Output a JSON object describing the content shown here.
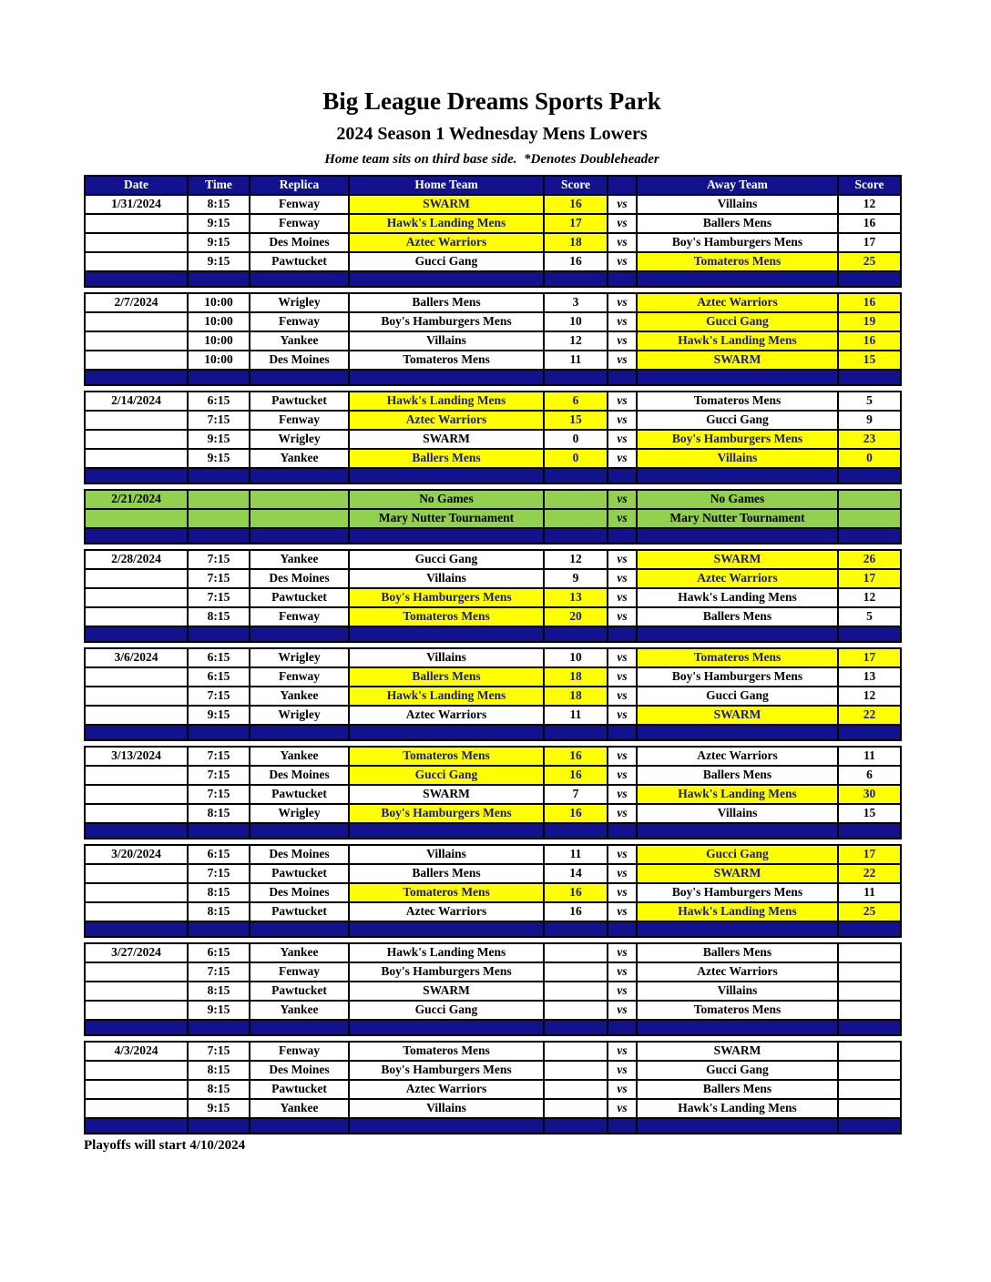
{
  "page": {
    "title": "Big League Dreams Sports Park",
    "subtitle": "2024 Season 1 Wednesday Mens Lowers",
    "note": "Home team sits on third base side.  *Denotes Doubleheader",
    "footer": "Playoffs will start 4/10/2024"
  },
  "colors": {
    "navy": "#12128F",
    "highlight_yellow": "#FFFF00",
    "highlight_text": "#1b1b80",
    "special_green": "#92D050",
    "header_text": "#ffffff"
  },
  "table": {
    "vs_label": "vs",
    "headers": [
      "Date",
      "Time",
      "Replica",
      "Home Team",
      "Score",
      "",
      "Away Team",
      "Score"
    ],
    "groups": [
      {
        "date": "1/31/2024",
        "type": "games",
        "rows": [
          {
            "time": "8:15",
            "replica": "Fenway",
            "home": "SWARM",
            "home_score": "16",
            "away": "Villains",
            "away_score": "12",
            "highlight": "home"
          },
          {
            "time": "9:15",
            "replica": "Fenway",
            "home": "Hawk's Landing Mens",
            "home_score": "17",
            "away": "Ballers Mens",
            "away_score": "16",
            "highlight": "home"
          },
          {
            "time": "9:15",
            "replica": "Des Moines",
            "home": "Aztec Warriors",
            "home_score": "18",
            "away": "Boy's Hamburgers Mens",
            "away_score": "17",
            "highlight": "home"
          },
          {
            "time": "9:15",
            "replica": "Pawtucket",
            "home": "Gucci Gang",
            "home_score": "16",
            "away": "Tomateros Mens",
            "away_score": "25",
            "highlight": "away"
          }
        ]
      },
      {
        "date": "2/7/2024",
        "type": "games",
        "rows": [
          {
            "time": "10:00",
            "replica": "Wrigley",
            "home": "Ballers Mens",
            "home_score": "3",
            "away": "Aztec Warriors",
            "away_score": "16",
            "highlight": "away"
          },
          {
            "time": "10:00",
            "replica": "Fenway",
            "home": "Boy's Hamburgers Mens",
            "home_score": "10",
            "away": "Gucci Gang",
            "away_score": "19",
            "highlight": "away"
          },
          {
            "time": "10:00",
            "replica": "Yankee",
            "home": "Villains",
            "home_score": "12",
            "away": "Hawk's Landing Mens",
            "away_score": "16",
            "highlight": "away"
          },
          {
            "time": "10:00",
            "replica": "Des Moines",
            "home": "Tomateros Mens",
            "home_score": "11",
            "away": "SWARM",
            "away_score": "15",
            "highlight": "away"
          }
        ]
      },
      {
        "date": "2/14/2024",
        "type": "games",
        "rows": [
          {
            "time": "6:15",
            "replica": "Pawtucket",
            "home": "Hawk's Landing Mens",
            "home_score": "6",
            "away": "Tomateros Mens",
            "away_score": "5",
            "highlight": "home"
          },
          {
            "time": "7:15",
            "replica": "Fenway",
            "home": "Aztec Warriors",
            "home_score": "15",
            "away": "Gucci Gang",
            "away_score": "9",
            "highlight": "home"
          },
          {
            "time": "9:15",
            "replica": "Wrigley",
            "home": "SWARM",
            "home_score": "0",
            "away": "Boy's Hamburgers Mens",
            "away_score": "23",
            "highlight": "away"
          },
          {
            "time": "9:15",
            "replica": "Yankee",
            "home": "Ballers Mens",
            "home_score": "0",
            "away": "Villains",
            "away_score": "0",
            "highlight": "both"
          }
        ]
      },
      {
        "date": "2/21/2024",
        "type": "special",
        "rows": [
          {
            "time": "",
            "replica": "",
            "home": "No Games",
            "home_score": "",
            "away": "No Games",
            "away_score": "",
            "highlight": "none"
          },
          {
            "time": "",
            "replica": "",
            "home": "Mary Nutter Tournament",
            "home_score": "",
            "away": "Mary Nutter Tournament",
            "away_score": "",
            "highlight": "none"
          }
        ]
      },
      {
        "date": "2/28/2024",
        "type": "games",
        "rows": [
          {
            "time": "7:15",
            "replica": "Yankee",
            "home": "Gucci Gang",
            "home_score": "12",
            "away": "SWARM",
            "away_score": "26",
            "highlight": "away"
          },
          {
            "time": "7:15",
            "replica": "Des Moines",
            "home": "Villains",
            "home_score": "9",
            "away": "Aztec Warriors",
            "away_score": "17",
            "highlight": "away"
          },
          {
            "time": "7:15",
            "replica": "Pawtucket",
            "home": "Boy's Hamburgers Mens",
            "home_score": "13",
            "away": "Hawk's Landing Mens",
            "away_score": "12",
            "highlight": "home"
          },
          {
            "time": "8:15",
            "replica": "Fenway",
            "home": "Tomateros Mens",
            "home_score": "20",
            "away": "Ballers Mens",
            "away_score": "5",
            "highlight": "home"
          }
        ]
      },
      {
        "date": "3/6/2024",
        "type": "games",
        "rows": [
          {
            "time": "6:15",
            "replica": "Wrigley",
            "home": "Villains",
            "home_score": "10",
            "away": "Tomateros Mens",
            "away_score": "17",
            "highlight": "away"
          },
          {
            "time": "6:15",
            "replica": "Fenway",
            "home": "Ballers Mens",
            "home_score": "18",
            "away": "Boy's Hamburgers Mens",
            "away_score": "13",
            "highlight": "home"
          },
          {
            "time": "7:15",
            "replica": "Yankee",
            "home": "Hawk's Landing Mens",
            "home_score": "18",
            "away": "Gucci Gang",
            "away_score": "12",
            "highlight": "home"
          },
          {
            "time": "9:15",
            "replica": "Wrigley",
            "home": "Aztec Warriors",
            "home_score": "11",
            "away": "SWARM",
            "away_score": "22",
            "highlight": "away"
          }
        ]
      },
      {
        "date": "3/13/2024",
        "type": "games",
        "rows": [
          {
            "time": "7:15",
            "replica": "Yankee",
            "home": "Tomateros Mens",
            "home_score": "16",
            "away": "Aztec Warriors",
            "away_score": "11",
            "highlight": "home"
          },
          {
            "time": "7:15",
            "replica": "Des Moines",
            "home": "Gucci Gang",
            "home_score": "16",
            "away": "Ballers Mens",
            "away_score": "6",
            "highlight": "home"
          },
          {
            "time": "7:15",
            "replica": "Pawtucket",
            "home": "SWARM",
            "home_score": "7",
            "away": "Hawk's Landing Mens",
            "away_score": "30",
            "highlight": "away"
          },
          {
            "time": "8:15",
            "replica": "Wrigley",
            "home": "Boy's Hamburgers Mens",
            "home_score": "16",
            "away": "Villains",
            "away_score": "15",
            "highlight": "home"
          }
        ]
      },
      {
        "date": "3/20/2024",
        "type": "games",
        "rows": [
          {
            "time": "6:15",
            "replica": "Des Moines",
            "home": "Villains",
            "home_score": "11",
            "away": "Gucci Gang",
            "away_score": "17",
            "highlight": "away"
          },
          {
            "time": "7:15",
            "replica": "Pawtucket",
            "home": "Ballers Mens",
            "home_score": "14",
            "away": "SWARM",
            "away_score": "22",
            "highlight": "away"
          },
          {
            "time": "8:15",
            "replica": "Des Moines",
            "home": "Tomateros Mens",
            "home_score": "16",
            "away": "Boy's Hamburgers Mens",
            "away_score": "11",
            "highlight": "home"
          },
          {
            "time": "8:15",
            "replica": "Pawtucket",
            "home": "Aztec Warriors",
            "home_score": "16",
            "away": "Hawk's Landing Mens",
            "away_score": "25",
            "highlight": "away"
          }
        ]
      },
      {
        "date": "3/27/2024",
        "type": "games",
        "rows": [
          {
            "time": "6:15",
            "replica": "Yankee",
            "home": "Hawk's Landing Mens",
            "home_score": "",
            "away": "Ballers Mens",
            "away_score": "",
            "highlight": "none"
          },
          {
            "time": "7:15",
            "replica": "Fenway",
            "home": "Boy's Hamburgers Mens",
            "home_score": "",
            "away": "Aztec Warriors",
            "away_score": "",
            "highlight": "none"
          },
          {
            "time": "8:15",
            "replica": "Pawtucket",
            "home": "SWARM",
            "home_score": "",
            "away": "Villains",
            "away_score": "",
            "highlight": "none"
          },
          {
            "time": "9:15",
            "replica": "Yankee",
            "home": "Gucci Gang",
            "home_score": "",
            "away": "Tomateros Mens",
            "away_score": "",
            "highlight": "none"
          }
        ]
      },
      {
        "date": "4/3/2024",
        "type": "games",
        "rows": [
          {
            "time": "7:15",
            "replica": "Fenway",
            "home": "Tomateros Mens",
            "home_score": "",
            "away": "SWARM",
            "away_score": "",
            "highlight": "none"
          },
          {
            "time": "8:15",
            "replica": "Des Moines",
            "home": "Boy's Hamburgers Mens",
            "home_score": "",
            "away": "Gucci Gang",
            "away_score": "",
            "highlight": "none"
          },
          {
            "time": "8:15",
            "replica": "Pawtucket",
            "home": "Aztec Warriors",
            "home_score": "",
            "away": "Ballers Mens",
            "away_score": "",
            "highlight": "none"
          },
          {
            "time": "9:15",
            "replica": "Yankee",
            "home": "Villains",
            "home_score": "",
            "away": "Hawk's Landing Mens",
            "away_score": "",
            "highlight": "none"
          }
        ]
      }
    ]
  }
}
